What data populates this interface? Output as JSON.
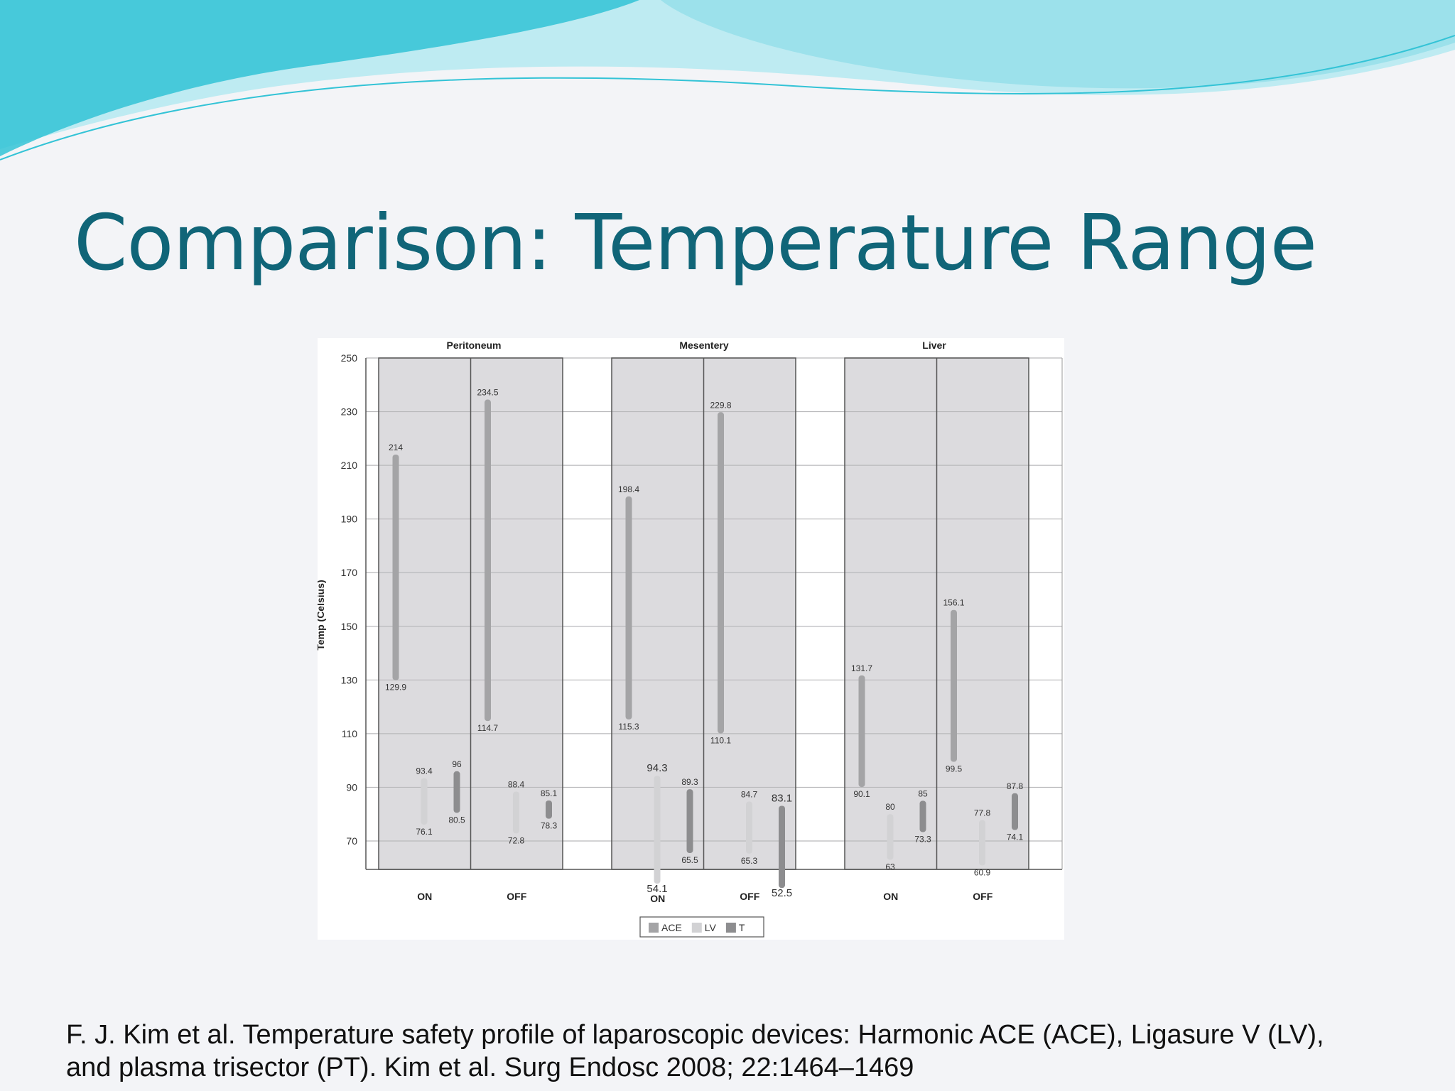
{
  "slide": {
    "title": "Comparison: Temperature Range",
    "citation_line1": "F. J. Kim et al. Temperature safety profile of laparoscopic devices: Harmonic ACE (ACE), Ligasure V (LV),",
    "citation_line2": "and plasma trisector (PT). Kim et al. Surg Endosc 2008; 22:1464–1469"
  },
  "colors": {
    "title": "#106578",
    "banner_dark": "#33c3d6",
    "banner_light": "#a6e7ef",
    "panel_fill": "#dcdbde",
    "ACE": "#a4a4a6",
    "LV": "#d2d2d4",
    "T": "#8d8d8f"
  },
  "chart_data": {
    "type": "range_bar",
    "ylabel": "Temp (Celsius)",
    "ylim": [
      61,
      250
    ],
    "yticks": [
      70,
      90,
      110,
      130,
      150,
      170,
      190,
      210,
      230,
      250
    ],
    "grid": true,
    "panels": [
      "Peritoneum",
      "Mesentery",
      "Liver"
    ],
    "groups": [
      "ON",
      "OFF"
    ],
    "legend": {
      "position": "bottom-center",
      "entries": [
        "ACE",
        "LV",
        "T"
      ]
    },
    "series": [
      {
        "name": "ACE",
        "ranges": [
          {
            "panel": "Peritoneum",
            "group": "ON",
            "max": 214,
            "min": 129.9
          },
          {
            "panel": "Peritoneum",
            "group": "OFF",
            "max": 234.5,
            "min": 114.7
          },
          {
            "panel": "Mesentery",
            "group": "ON",
            "max": 198.4,
            "min": 115.3
          },
          {
            "panel": "Mesentery",
            "group": "OFF",
            "max": 229.8,
            "min": 110.1
          },
          {
            "panel": "Liver",
            "group": "ON",
            "max": 131.7,
            "min": 90.1
          },
          {
            "panel": "Liver",
            "group": "OFF",
            "max": 156.1,
            "min": 99.5
          }
        ]
      },
      {
        "name": "LV",
        "ranges": [
          {
            "panel": "Peritoneum",
            "group": "ON",
            "max": 93.4,
            "min": 76.1,
            "max_label": "93.4",
            "min_label": "76.1"
          },
          {
            "panel": "Peritoneum",
            "group": "OFF",
            "max": 88.4,
            "min": 72.8,
            "max_label": "88.4",
            "min_label": "72.8"
          },
          {
            "panel": "Mesentery",
            "group": "ON",
            "max": 94.3,
            "min": 54.1,
            "max_label": "94.3",
            "min_label": "54.1"
          },
          {
            "panel": "Mesentery",
            "group": "OFF",
            "max": 84.7,
            "min": 65.3,
            "max_label": "84.7",
            "min_label": "65.3"
          },
          {
            "panel": "Liver",
            "group": "ON",
            "max": 80,
            "min": 63,
            "max_label": "80",
            "min_label": "63"
          },
          {
            "panel": "Liver",
            "group": "OFF",
            "max": 77.8,
            "min": 60.9,
            "max_label": "77.8",
            "min_label": "60.9"
          }
        ]
      },
      {
        "name": "T",
        "ranges": [
          {
            "panel": "Peritoneum",
            "group": "ON",
            "max": 96,
            "min": 80.5
          },
          {
            "panel": "Peritoneum",
            "group": "OFF",
            "max": 85.1,
            "min": 78.3
          },
          {
            "panel": "Mesentery",
            "group": "ON",
            "max": 89.3,
            "min": 65.5
          },
          {
            "panel": "Mesentery",
            "group": "OFF",
            "max": 83.1,
            "min": 52.5
          },
          {
            "panel": "Liver",
            "group": "ON",
            "max": 85,
            "min": 73.3
          },
          {
            "panel": "Liver",
            "group": "OFF",
            "max": 87.8,
            "min": 74.1
          }
        ]
      }
    ]
  }
}
